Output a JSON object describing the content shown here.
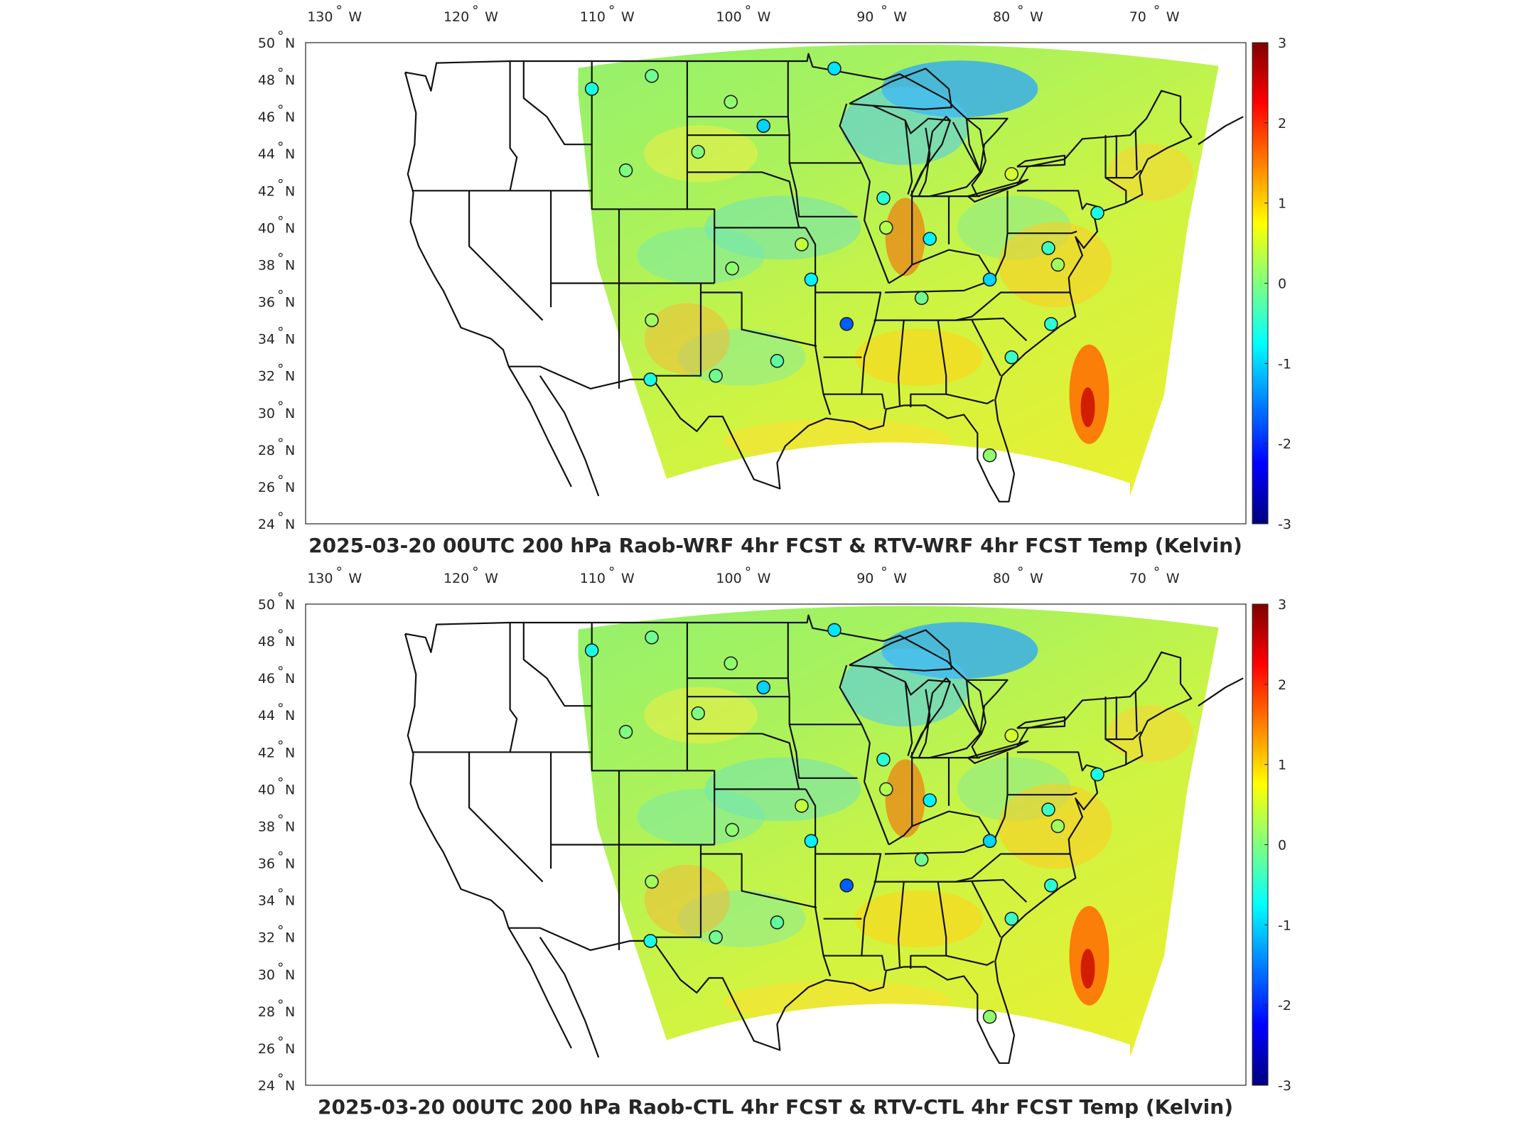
{
  "figure": {
    "panels": [
      {
        "id": "top",
        "title": "2025-03-20 00UTC 200 hPa Raob-WRF 4hr FCST & RTV-WRF 4hr FCST Temp (Kelvin)"
      },
      {
        "id": "bottom",
        "title": "2025-03-20 00UTC 200 hPa Raob-CTL 4hr FCST & RTV-CTL 4hr FCST Temp (Kelvin)"
      }
    ],
    "lon_ticks": [
      "130",
      "120",
      "110",
      "100",
      "90",
      "80",
      "70"
    ],
    "lon_suffix": "W",
    "lat_ticks": [
      "50",
      "48",
      "46",
      "44",
      "42",
      "40",
      "38",
      "36",
      "34",
      "32",
      "30",
      "28",
      "26",
      "24"
    ],
    "lat_suffix": "N",
    "degree_symbol": "°",
    "colorbar": {
      "ticks": [
        "3",
        "2",
        "1",
        "0",
        "-1",
        "-2",
        "-3"
      ],
      "range": [
        -3,
        3
      ],
      "colormap": [
        "#00007f",
        "#0000ff",
        "#007fff",
        "#00ffff",
        "#7fff7f",
        "#ffff00",
        "#ff7f00",
        "#ff0000",
        "#7f0000"
      ]
    }
  },
  "chart_data": {
    "type": "map",
    "units": "Kelvin",
    "extent": {
      "lon": [
        -132,
        -63
      ],
      "lat": [
        24,
        50
      ]
    },
    "raob_stations": [
      {
        "lon": -111.0,
        "lat": 47.5,
        "value": -0.6
      },
      {
        "lon": -106.6,
        "lat": 48.2,
        "value": -0.1
      },
      {
        "lon": -100.8,
        "lat": 46.8,
        "value": 0.1
      },
      {
        "lon": -98.4,
        "lat": 45.5,
        "value": -1.0
      },
      {
        "lon": -93.2,
        "lat": 48.6,
        "value": -0.9
      },
      {
        "lon": -103.2,
        "lat": 44.1,
        "value": 0.0
      },
      {
        "lon": -108.5,
        "lat": 43.1,
        "value": 0.0
      },
      {
        "lon": -89.6,
        "lat": 41.6,
        "value": -0.5
      },
      {
        "lon": -89.4,
        "lat": 40.0,
        "value": 0.3
      },
      {
        "lon": -86.2,
        "lat": 39.4,
        "value": -0.8
      },
      {
        "lon": -80.2,
        "lat": 42.9,
        "value": 0.5
      },
      {
        "lon": -73.9,
        "lat": 40.8,
        "value": -0.6
      },
      {
        "lon": -95.6,
        "lat": 39.1,
        "value": 0.4
      },
      {
        "lon": -100.7,
        "lat": 37.8,
        "value": 0.1
      },
      {
        "lon": -94.9,
        "lat": 37.2,
        "value": -0.8
      },
      {
        "lon": -92.3,
        "lat": 34.8,
        "value": -1.7
      },
      {
        "lon": -86.8,
        "lat": 36.2,
        "value": -0.1
      },
      {
        "lon": -81.8,
        "lat": 37.2,
        "value": -1.0
      },
      {
        "lon": -77.5,
        "lat": 38.9,
        "value": -0.4
      },
      {
        "lon": -76.8,
        "lat": 38.0,
        "value": 0.2
      },
      {
        "lon": -77.3,
        "lat": 34.8,
        "value": -0.5
      },
      {
        "lon": -80.2,
        "lat": 33.0,
        "value": -0.4
      },
      {
        "lon": -81.8,
        "lat": 27.7,
        "value": 0.1
      },
      {
        "lon": -97.4,
        "lat": 32.8,
        "value": -0.2
      },
      {
        "lon": -101.9,
        "lat": 32.0,
        "value": -0.1
      },
      {
        "lon": -106.6,
        "lat": 35.0,
        "value": 0.2
      },
      {
        "lon": -106.7,
        "lat": 31.8,
        "value": -0.6
      }
    ]
  }
}
